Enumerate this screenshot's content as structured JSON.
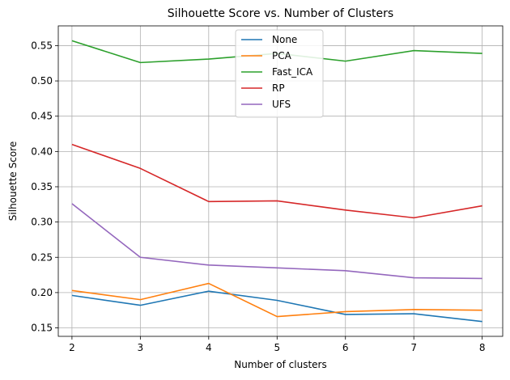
{
  "chart_data": {
    "type": "line",
    "title": "Silhouette Score vs. Number of Clusters",
    "xlabel": "Number of clusters",
    "ylabel": "Silhouette Score",
    "x": [
      2,
      3,
      4,
      5,
      6,
      7,
      8
    ],
    "xlim": [
      1.8,
      8.3
    ],
    "ylim": [
      0.138,
      0.578
    ],
    "xticks": [
      "2",
      "3",
      "4",
      "5",
      "6",
      "7",
      "8"
    ],
    "yticks": [
      "0.15",
      "0.20",
      "0.25",
      "0.30",
      "0.35",
      "0.40",
      "0.45",
      "0.50",
      "0.55"
    ],
    "grid": true,
    "legend_position": "upper center",
    "series": [
      {
        "name": "None",
        "color": "#1f77b4",
        "values": [
          0.196,
          0.182,
          0.202,
          0.189,
          0.169,
          0.17,
          0.159
        ]
      },
      {
        "name": "PCA",
        "color": "#ff7f0e",
        "values": [
          0.203,
          0.19,
          0.213,
          0.166,
          0.173,
          0.176,
          0.175
        ]
      },
      {
        "name": "Fast_ICA",
        "color": "#2ca02c",
        "values": [
          0.557,
          0.526,
          0.531,
          0.539,
          0.528,
          0.543,
          0.539
        ]
      },
      {
        "name": "RP",
        "color": "#d62728",
        "values": [
          0.41,
          0.376,
          0.329,
          0.33,
          0.317,
          0.306,
          0.323
        ]
      },
      {
        "name": "UFS",
        "color": "#9467bd",
        "values": [
          0.326,
          0.25,
          0.239,
          0.235,
          0.231,
          0.221,
          0.22
        ]
      }
    ]
  }
}
